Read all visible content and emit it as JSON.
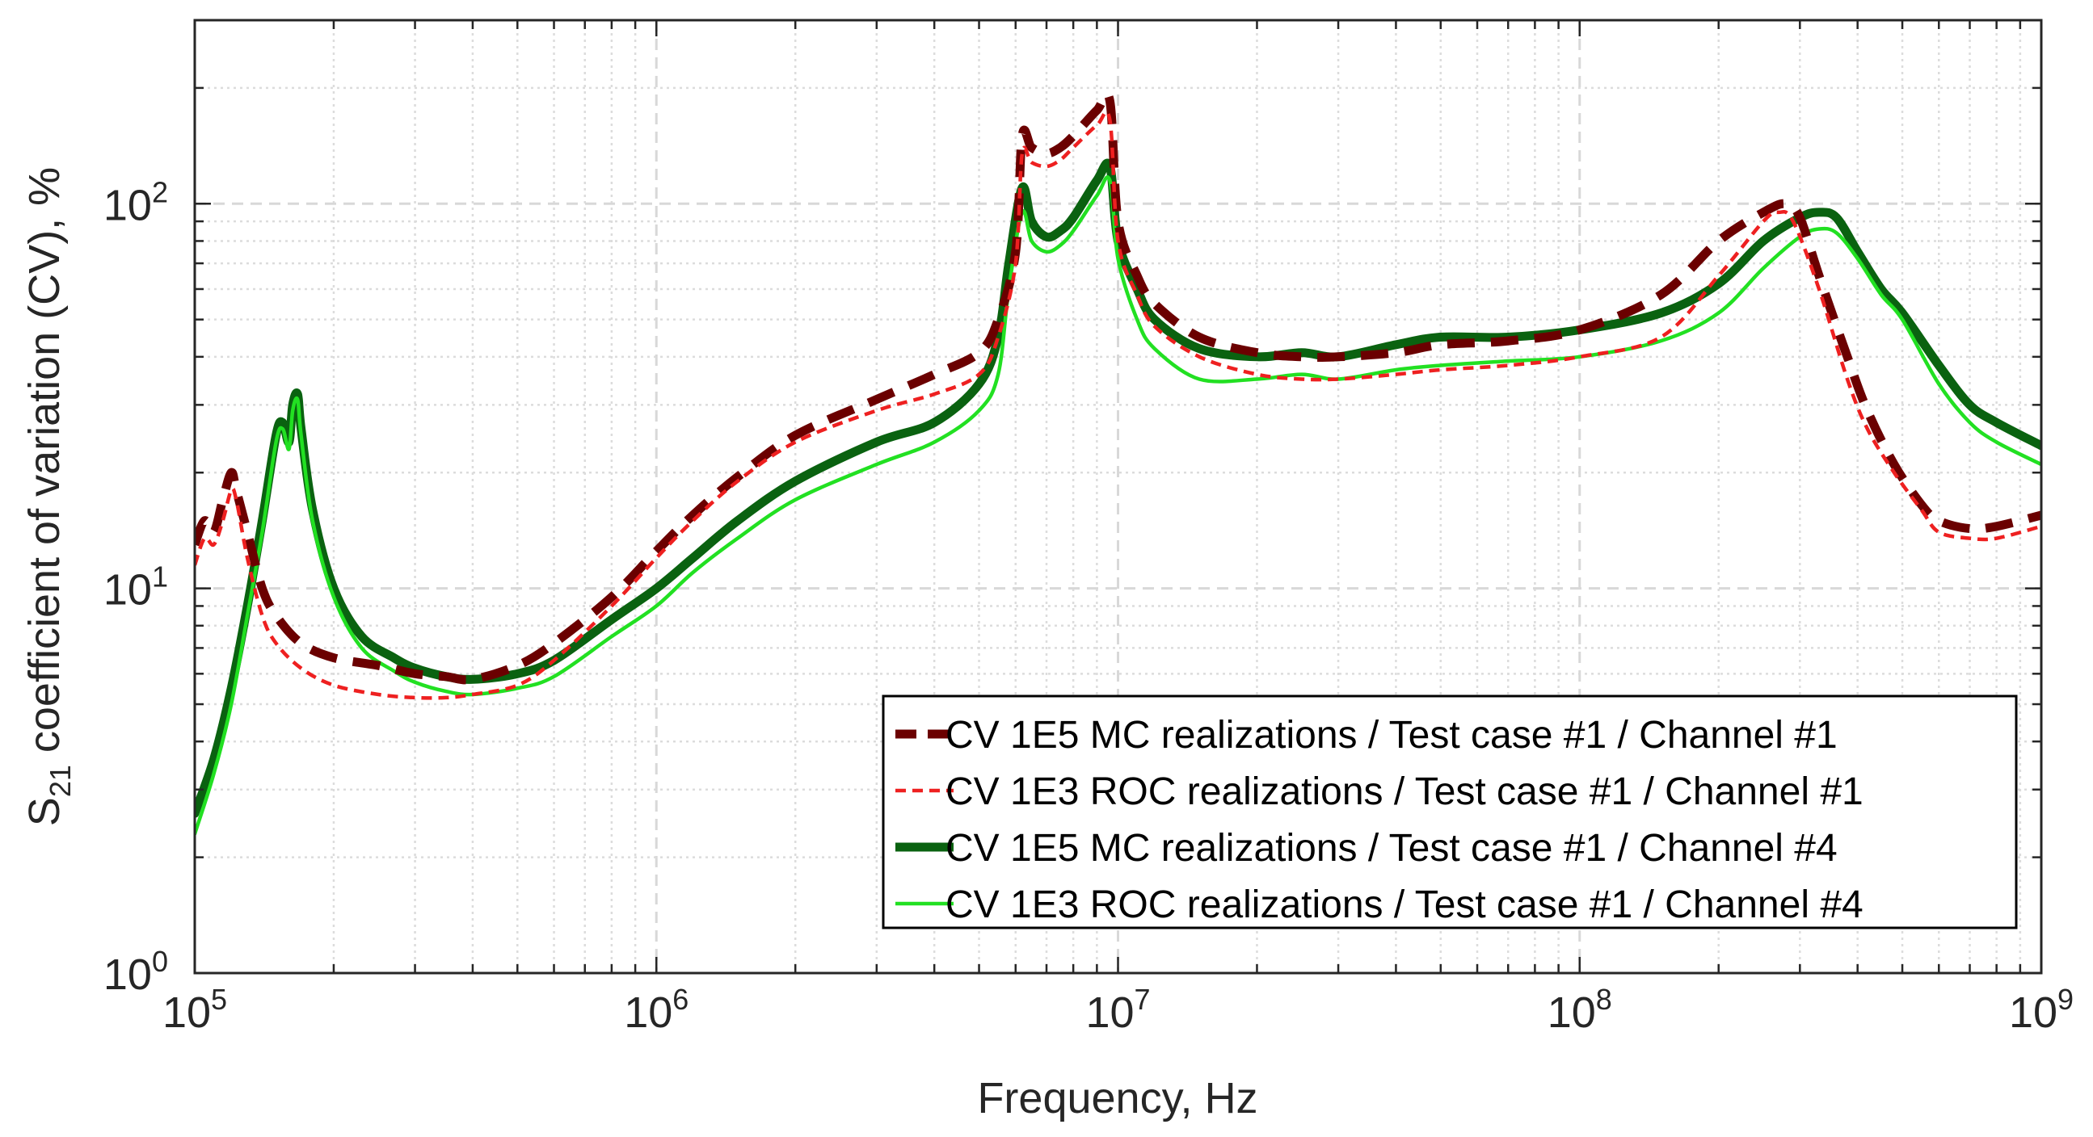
{
  "chart_data": {
    "type": "line",
    "title": "",
    "xlabel": "Frequency, Hz",
    "ylabel": {
      "base": "S",
      "subscript": "21",
      "rest": " coefficient of variation (CV), %"
    },
    "x_scale": "log",
    "y_scale": "log",
    "xlim": [
      100000,
      1000000000
    ],
    "ylim": [
      1,
      300
    ],
    "grid": true,
    "legend_position": "bottom-right",
    "x_ticks": [
      {
        "value": 100000,
        "base": "10",
        "exp": "5"
      },
      {
        "value": 1000000,
        "base": "10",
        "exp": "6"
      },
      {
        "value": 10000000,
        "base": "10",
        "exp": "7"
      },
      {
        "value": 100000000,
        "base": "10",
        "exp": "8"
      },
      {
        "value": 1000000000,
        "base": "10",
        "exp": "9"
      }
    ],
    "y_ticks": [
      {
        "value": 1,
        "base": "10",
        "exp": "0"
      },
      {
        "value": 10,
        "base": "10",
        "exp": "1"
      },
      {
        "value": 100,
        "base": "10",
        "exp": "2"
      }
    ],
    "series": [
      {
        "name": "CV 1E5 MC realizations / Test case #1 / Channel #1",
        "color": "#6b0000",
        "style": "dashed-thick",
        "x": [
          100000,
          105000,
          110000,
          115000,
          120000,
          123000,
          130000,
          140000,
          150000,
          170000,
          200000,
          250000,
          300000,
          350000,
          400000,
          500000,
          600000,
          800000,
          1000000,
          1200000,
          1500000,
          2000000,
          3000000,
          4000000,
          5000000,
          5500000,
          6000000,
          6200000,
          6500000,
          7000000,
          7500000,
          8000000,
          9000000,
          9600000,
          10000000,
          11000000,
          12000000,
          15000000,
          20000000,
          25000000,
          30000000,
          40000000,
          50000000,
          70000000,
          100000000,
          150000000,
          200000000,
          250000000,
          280000000,
          300000000,
          330000000,
          380000000,
          420000000,
          480000000,
          550000000,
          600000000,
          700000000,
          800000000,
          1000000000
        ],
        "y": [
          13,
          15,
          14,
          17,
          20,
          18,
          14,
          10,
          8.5,
          7.2,
          6.6,
          6.3,
          6.0,
          5.9,
          5.8,
          6.3,
          7.2,
          9.5,
          12.5,
          15.5,
          19.5,
          25,
          31,
          36,
          41,
          50,
          75,
          150,
          140,
          135,
          140,
          150,
          175,
          185,
          90,
          65,
          55,
          45,
          41,
          40,
          40,
          41,
          43,
          44,
          47,
          58,
          80,
          95,
          100,
          92,
          65,
          40,
          29,
          21,
          16.5,
          15,
          14.3,
          14.5,
          15.5
        ]
      },
      {
        "name": "CV 1E3 ROC realizations / Test case #1 / Channel #1",
        "color": "#ee2020",
        "style": "dashed-thin",
        "x": [
          100000,
          105000,
          110000,
          115000,
          120000,
          123000,
          130000,
          140000,
          150000,
          170000,
          200000,
          250000,
          300000,
          350000,
          400000,
          500000,
          600000,
          800000,
          1000000,
          1200000,
          1500000,
          2000000,
          3000000,
          4000000,
          5000000,
          5500000,
          6000000,
          6200000,
          6500000,
          7000000,
          7500000,
          8000000,
          9000000,
          9600000,
          10000000,
          11000000,
          12000000,
          15000000,
          20000000,
          25000000,
          30000000,
          40000000,
          50000000,
          70000000,
          100000000,
          150000000,
          200000000,
          250000000,
          270000000,
          290000000,
          330000000,
          380000000,
          420000000,
          480000000,
          550000000,
          600000000,
          700000000,
          800000000,
          1000000000
        ],
        "y": [
          11.5,
          13.5,
          13,
          15,
          18,
          17,
          12,
          8.5,
          7.2,
          6.2,
          5.6,
          5.3,
          5.2,
          5.2,
          5.3,
          5.6,
          6.5,
          9,
          12,
          15,
          19,
          24,
          29,
          32,
          36,
          45,
          70,
          135,
          128,
          125,
          130,
          140,
          160,
          165,
          80,
          58,
          48,
          40,
          36,
          35,
          35,
          36,
          37,
          38,
          40,
          45,
          65,
          90,
          95,
          90,
          60,
          35,
          26,
          20,
          16,
          14,
          13.5,
          13.5,
          14.5
        ]
      },
      {
        "name": "CV 1E5 MC realizations / Test case #1 / Channel #4",
        "color": "#0a6210",
        "style": "solid-thick",
        "x": [
          100000,
          110000,
          120000,
          130000,
          140000,
          150000,
          155000,
          160000,
          163000,
          167000,
          170000,
          180000,
          200000,
          230000,
          270000,
          300000,
          350000,
          400000,
          500000,
          600000,
          800000,
          1000000,
          1200000,
          1500000,
          2000000,
          3000000,
          4000000,
          5000000,
          5500000,
          5800000,
          6200000,
          6500000,
          7000000,
          7500000,
          8000000,
          9000000,
          9600000,
          10000000,
          11000000,
          12000000,
          15000000,
          20000000,
          25000000,
          30000000,
          40000000,
          50000000,
          70000000,
          100000000,
          150000000,
          200000000,
          250000000,
          300000000,
          330000000,
          360000000,
          400000000,
          450000000,
          500000000,
          600000000,
          700000000,
          800000000,
          1000000000
        ],
        "y": [
          2.6,
          3.6,
          5.5,
          9,
          15,
          25,
          27,
          24,
          30,
          32,
          26,
          16,
          10,
          7.5,
          6.6,
          6.2,
          5.9,
          5.8,
          6.0,
          6.5,
          8.3,
          10,
          12,
          15,
          19,
          24,
          27,
          34,
          45,
          70,
          110,
          90,
          82,
          85,
          92,
          115,
          125,
          80,
          60,
          50,
          42,
          40,
          41,
          40,
          43,
          45,
          45,
          47,
          52,
          62,
          80,
          92,
          95,
          92,
          75,
          60,
          52,
          38,
          30,
          27,
          23.5
        ]
      },
      {
        "name": "CV 1E3 ROC realizations / Test case #1 / Channel #4",
        "color": "#22e022",
        "style": "solid-thin",
        "x": [
          100000,
          110000,
          120000,
          130000,
          140000,
          150000,
          155000,
          160000,
          163000,
          167000,
          170000,
          180000,
          200000,
          230000,
          270000,
          300000,
          350000,
          400000,
          500000,
          600000,
          800000,
          1000000,
          1200000,
          1500000,
          2000000,
          3000000,
          4000000,
          5000000,
          5500000,
          5800000,
          6200000,
          6500000,
          7000000,
          7500000,
          8000000,
          9000000,
          9600000,
          10000000,
          11000000,
          12000000,
          15000000,
          20000000,
          25000000,
          30000000,
          40000000,
          50000000,
          70000000,
          100000000,
          150000000,
          200000000,
          250000000,
          300000000,
          330000000,
          360000000,
          400000000,
          450000000,
          500000000,
          600000000,
          700000000,
          800000000,
          1000000000
        ],
        "y": [
          2.3,
          3.3,
          5.0,
          8.5,
          14,
          24,
          26,
          23,
          29,
          31,
          25,
          15,
          9.5,
          7.0,
          6.1,
          5.7,
          5.4,
          5.3,
          5.5,
          5.9,
          7.5,
          9,
          11,
          13.5,
          17,
          21,
          24,
          29,
          36,
          60,
          95,
          80,
          75,
          78,
          85,
          105,
          115,
          72,
          50,
          42,
          35,
          35,
          36,
          35,
          37,
          38,
          39,
          40,
          44,
          52,
          68,
          82,
          86,
          84,
          72,
          58,
          50,
          34,
          27,
          24,
          21
        ]
      }
    ]
  }
}
